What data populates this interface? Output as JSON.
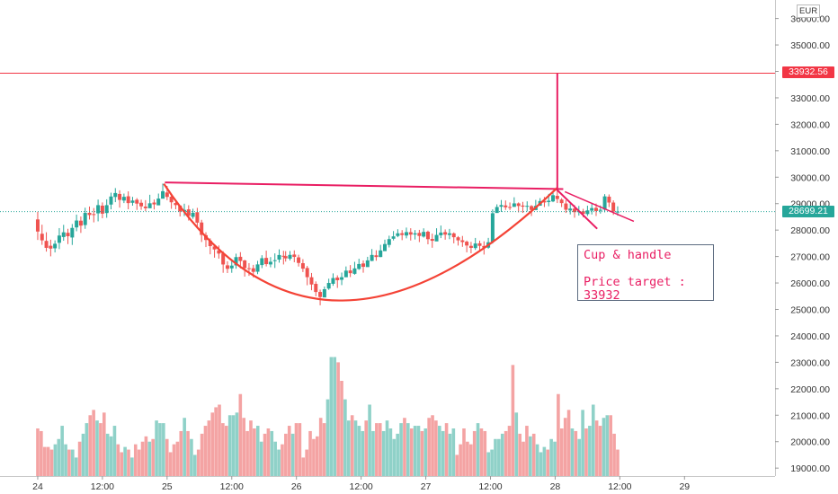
{
  "chart_data": {
    "type": "candlestick",
    "currency": "EUR",
    "y_axis": {
      "ylim": [
        18700,
        36700
      ],
      "ticks": [
        "36000.00",
        "35000.00",
        "34000.00",
        "33000.00",
        "32000.00",
        "31000.00",
        "30000.00",
        "29000.00",
        "28000.00",
        "27000.00",
        "26000.00",
        "25000.00",
        "24000.00",
        "23000.00",
        "22000.00",
        "21000.00",
        "20000.00",
        "19000.00"
      ]
    },
    "x_axis": {
      "ticks": [
        "24",
        "12:00",
        "25",
        "12:00",
        "26",
        "12:00",
        "27",
        "12:00",
        "28",
        "12:00",
        "29"
      ],
      "tick_times": [
        0,
        12,
        24,
        36,
        48,
        60,
        72,
        84,
        96,
        108,
        120
      ],
      "xlim": [
        -7.0,
        136.8
      ]
    },
    "price_lines": [
      {
        "label": "33932.56",
        "value": 33932.56,
        "color": "#f23645"
      },
      {
        "label": "28699.21",
        "value": 28699.21,
        "color": "#26a69a"
      }
    ],
    "annotation": {
      "title": "Cup & handle",
      "line2": "Price target :",
      "line3": "33932"
    },
    "candles": [
      [
        0.0,
        28403,
        27945,
        28690,
        27626
      ],
      [
        0.8,
        27861,
        27612,
        28203,
        27442
      ],
      [
        1.6,
        27591,
        27328,
        27918,
        27186
      ],
      [
        2.4,
        27408,
        27300,
        27637,
        27007
      ],
      [
        3.2,
        27311,
        27483,
        27611,
        27155
      ],
      [
        4.0,
        27519,
        27794,
        28075,
        27281
      ],
      [
        4.8,
        27738,
        27916,
        28198,
        27597
      ],
      [
        5.6,
        27897,
        27769,
        28048,
        27471
      ],
      [
        6.4,
        27720,
        28082,
        28230,
        27438
      ],
      [
        7.2,
        28101,
        28361,
        28586,
        27956
      ],
      [
        8.0,
        28355,
        28169,
        28514,
        27893
      ],
      [
        8.8,
        28191,
        28650,
        28847,
        28047
      ],
      [
        9.6,
        28653,
        28569,
        28891,
        28399
      ],
      [
        10.4,
        28604,
        28602,
        28834,
        28292
      ],
      [
        11.2,
        28633,
        28943,
        29154,
        28330
      ],
      [
        12.0,
        28924,
        28621,
        29045,
        28448
      ],
      [
        12.8,
        28644,
        28942,
        29163,
        28465
      ],
      [
        13.6,
        28965,
        29270,
        29414,
        28784
      ],
      [
        14.4,
        29252,
        29401,
        29588,
        29056
      ],
      [
        15.2,
        29366,
        29141,
        29505,
        28849
      ],
      [
        16.0,
        29117,
        29257,
        29380,
        29021
      ],
      [
        16.8,
        29278,
        29020,
        29464,
        28787
      ],
      [
        17.6,
        29032,
        29116,
        29256,
        28923
      ],
      [
        18.4,
        29147,
        29001,
        29209,
        28762
      ],
      [
        19.2,
        29033,
        28899,
        29150,
        28766
      ],
      [
        20.0,
        28888,
        28828,
        29132,
        28717
      ],
      [
        20.8,
        28825,
        29013,
        29335,
        28852
      ],
      [
        21.6,
        29041,
        28971,
        29155,
        28781
      ],
      [
        22.4,
        28936,
        29191,
        29381,
        28966
      ],
      [
        23.2,
        29187,
        29469,
        29760,
        29258
      ],
      [
        24.0,
        29422,
        29254,
        29670,
        29130
      ],
      [
        24.8,
        29262,
        29051,
        29333,
        28804
      ],
      [
        25.6,
        29024,
        28945,
        29139,
        28787
      ],
      [
        26.4,
        28928,
        28703,
        28924,
        28514
      ],
      [
        27.2,
        28696,
        28762,
        28998,
        28530
      ],
      [
        28.0,
        28782,
        28542,
        28940,
        28359
      ],
      [
        28.8,
        28501,
        28653,
        28806,
        28426
      ],
      [
        29.6,
        28675,
        28281,
        28840,
        28067
      ],
      [
        30.4,
        28287,
        27817,
        28387,
        27550
      ],
      [
        31.2,
        27808,
        27625,
        27919,
        27358
      ],
      [
        32.0,
        27604,
        27394,
        27689,
        27084
      ],
      [
        32.8,
        27383,
        27268,
        27466,
        26957
      ],
      [
        33.6,
        27233,
        27112,
        27417,
        26921
      ],
      [
        34.4,
        27114,
        26700,
        27201,
        26385
      ],
      [
        35.2,
        26667,
        26536,
        26819,
        26375
      ],
      [
        36.0,
        26552,
        26657,
        26853,
        26385
      ],
      [
        36.8,
        26665,
        26978,
        27108,
        26539
      ],
      [
        37.6,
        26990,
        26831,
        27166,
        26551
      ],
      [
        38.4,
        26852,
        26564,
        26875,
        26241
      ],
      [
        39.2,
        26558,
        26545,
        26750,
        26269
      ],
      [
        40.0,
        26556,
        26421,
        26685,
        26211
      ],
      [
        40.8,
        26425,
        26702,
        26837,
        26334
      ],
      [
        41.6,
        26678,
        26936,
        27049,
        26562
      ],
      [
        42.4,
        26948,
        26714,
        27223,
        26627
      ],
      [
        43.2,
        26701,
        26802,
        26979,
        26594
      ],
      [
        44.0,
        26837,
        26862,
        27119,
        26567
      ],
      [
        44.8,
        26884,
        27058,
        27271,
        26767
      ],
      [
        45.6,
        27028,
        27004,
        27218,
        26700
      ],
      [
        46.0,
        27014,
        26932,
        27205,
        26808
      ],
      [
        46.8,
        26917,
        27062,
        27208,
        26851
      ],
      [
        47.6,
        27075,
        26985,
        27234,
        26784
      ],
      [
        48.4,
        26968,
        26758,
        27068,
        26622
      ],
      [
        49.2,
        26748,
        26541,
        26900,
        26413
      ],
      [
        50.0,
        26567,
        26220,
        26645,
        25914
      ],
      [
        50.8,
        26217,
        25943,
        26378,
        25725
      ],
      [
        51.6,
        25967,
        25659,
        26059,
        25496
      ],
      [
        52.4,
        25661,
        25469,
        25750,
        25156
      ],
      [
        53.2,
        25452,
        25764,
        25866,
        25460
      ],
      [
        54.0,
        25789,
        26001,
        26162,
        25741
      ],
      [
        54.8,
        25969,
        26186,
        26363,
        25894
      ],
      [
        55.6,
        26205,
        26104,
        26288,
        25813
      ],
      [
        56.4,
        26121,
        26218,
        26394,
        25920
      ],
      [
        57.2,
        26217,
        26467,
        26625,
        26238
      ],
      [
        58.0,
        26474,
        26370,
        26677,
        26224
      ],
      [
        58.8,
        26346,
        26552,
        26801,
        26313
      ],
      [
        59.6,
        26530,
        26718,
        26915,
        26495
      ],
      [
        60.4,
        26738,
        26611,
        26853,
        26389
      ],
      [
        61.2,
        26601,
        26854,
        26989,
        26615
      ],
      [
        62.0,
        26834,
        27060,
        27284,
        26824
      ],
      [
        62.8,
        27046,
        26982,
        27236,
        26841
      ],
      [
        63.6,
        26981,
        27231,
        27443,
        26976
      ],
      [
        64.4,
        27204,
        27472,
        27639,
        27234
      ],
      [
        65.2,
        27439,
        27659,
        27788,
        27343
      ],
      [
        66.0,
        27673,
        27762,
        27963,
        27609
      ],
      [
        66.8,
        27777,
        27878,
        28032,
        27731
      ],
      [
        67.6,
        27881,
        27815,
        27999,
        27619
      ],
      [
        68.4,
        27794,
        27923,
        28095,
        27687
      ],
      [
        69.2,
        27921,
        27829,
        28070,
        27607
      ],
      [
        70.0,
        27832,
        27878,
        28001,
        27643
      ],
      [
        70.8,
        27893,
        27778,
        28009,
        27546
      ],
      [
        71.6,
        27755,
        27931,
        28067,
        27716
      ],
      [
        72.4,
        27938,
        27657,
        27980,
        27462
      ],
      [
        73.2,
        27665,
        27596,
        27867,
        27332
      ],
      [
        74.0,
        27572,
        27816,
        28069,
        27633
      ],
      [
        74.8,
        27804,
        27906,
        28172,
        27697
      ],
      [
        75.6,
        27923,
        27829,
        28025,
        27637
      ],
      [
        76.4,
        27816,
        27878,
        28045,
        27656
      ],
      [
        77.2,
        27876,
        27730,
        27912,
        27499
      ],
      [
        78.0,
        27727,
        27612,
        27773,
        27415
      ],
      [
        78.8,
        27614,
        27547,
        27778,
        27366
      ],
      [
        79.6,
        27561,
        27417,
        27604,
        27158
      ],
      [
        80.4,
        27404,
        27327,
        27554,
        27124
      ],
      [
        81.2,
        27320,
        27493,
        27703,
        27250
      ],
      [
        82.0,
        27501,
        27403,
        27602,
        27233
      ],
      [
        82.8,
        27399,
        27336,
        27576,
        27075
      ],
      [
        83.6,
        27336,
        27540,
        27705,
        27296
      ],
      [
        84.4,
        27555,
        28637,
        28784,
        27490
      ],
      [
        85.2,
        28646,
        28872,
        28973,
        28671
      ],
      [
        86.0,
        28883,
        28946,
        29137,
        28688
      ],
      [
        86.8,
        28932,
        28861,
        29121,
        28762
      ],
      [
        87.6,
        28874,
        28866,
        29044,
        28759
      ],
      [
        88.4,
        28878,
        29009,
        29241,
        28879
      ],
      [
        89.2,
        29009,
        28912,
        29046,
        28668
      ],
      [
        90.0,
        28927,
        28887,
        29067,
        28650
      ],
      [
        90.8,
        28890,
        28916,
        29087,
        28707
      ],
      [
        91.6,
        28908,
        28762,
        28944,
        28532
      ],
      [
        92.4,
        28755,
        28916,
        29142,
        28768
      ],
      [
        93.2,
        28922,
        29097,
        29209,
        28946
      ],
      [
        94.0,
        29104,
        29045,
        29253,
        28871
      ],
      [
        94.8,
        29058,
        29111,
        29370,
        28901
      ],
      [
        95.6,
        29085,
        29319,
        29457,
        29055
      ],
      [
        96.4,
        29295,
        29175,
        29487,
        29023
      ],
      [
        97.2,
        29153,
        29020,
        29206,
        28870
      ],
      [
        98.0,
        29005,
        28770,
        29128,
        28647
      ],
      [
        98.8,
        28741,
        28814,
        29000,
        28593
      ],
      [
        99.6,
        28812,
        28678,
        28947,
        28467
      ],
      [
        100.4,
        28683,
        28712,
        28914,
        28549
      ],
      [
        101.2,
        28713,
        28612,
        28803,
        28483
      ],
      [
        102.0,
        28605,
        28744,
        28924,
        28534
      ],
      [
        102.8,
        28735,
        28832,
        28997,
        28590
      ],
      [
        103.6,
        28840,
        28721,
        29004,
        28533
      ],
      [
        104.4,
        28729,
        28768,
        28933,
        28623
      ],
      [
        105.2,
        28774,
        29275,
        29360,
        28671
      ],
      [
        106.0,
        29264,
        29041,
        29349,
        28869
      ],
      [
        106.8,
        29041,
        28701,
        29125,
        28574
      ],
      [
        107.6,
        28695,
        28699,
        28899,
        28543
      ]
    ],
    "volumes": [
      20500,
      20400,
      19800,
      19800,
      19700,
      19900,
      20100,
      20600,
      19900,
      19700,
      19700,
      19400,
      20000,
      20300,
      20700,
      21000,
      21200,
      20800,
      20700,
      21100,
      20300,
      20200,
      20600,
      19900,
      19600,
      19800,
      19700,
      19400,
      19900,
      19700,
      20000,
      20200,
      20000,
      20100,
      20800,
      20700,
      20700,
      20100,
      19600,
      19900,
      20000,
      20400,
      20900,
      20400,
      20100,
      19500,
      19700,
      20300,
      20600,
      20800,
      21100,
      21300,
      21400,
      20700,
      20600,
      21000,
      21000,
      21100,
      21800,
      20900,
      20400,
      20800,
      20500,
      20600,
      20000,
      20300,
      20500,
      20400,
      20000,
      19700,
      19900,
      20300,
      20600,
      20300,
      20700,
      20700,
      19400,
      19700,
      20400,
      20100,
      20200,
      20900,
      20700,
      21600,
      23200,
      23200,
      23000,
      22300,
      21600,
      20800,
      21000,
      20800,
      20600,
      20400,
      20800,
      21400,
      20400,
      20700,
      20700,
      20400,
      20800,
      20500,
      20100,
      20300,
      20700,
      20900,
      20700,
      20500,
      20600,
      20600,
      20400,
      20500,
      20900,
      21000,
      20800,
      20600,
      20400,
      20700,
      20300,
      20500,
      19500,
      19900,
      20500,
      20000,
      19900,
      20400,
      20700,
      20500,
      20400,
      19600,
      19700,
      20100,
      20100,
      20300,
      20400,
      20600,
      22900,
      21100,
      20300,
      20000,
      20600,
      20200,
      20300,
      19900,
      19600,
      19800,
      19700,
      20100,
      20000,
      21800,
      20500,
      20900,
      21200,
      20500,
      20400,
      20100,
      21200,
      20500,
      20600,
      21400,
      20800,
      20600,
      20900,
      21000,
      21000,
      20300,
      19700
    ]
  }
}
